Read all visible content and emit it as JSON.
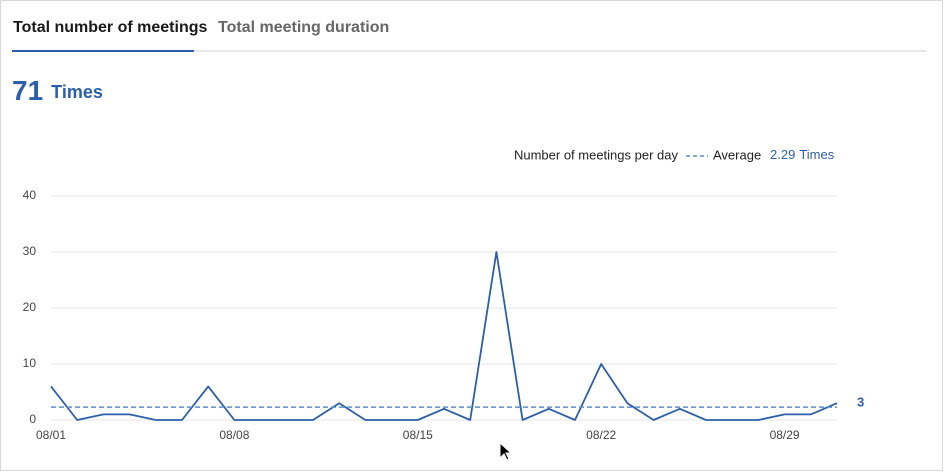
{
  "tabs": [
    "Total number of meetings",
    "Total meeting duration"
  ],
  "summary": {
    "value": 71,
    "unit": "Times"
  },
  "chart_data": {
    "type": "line",
    "series_name": "Number of meetings per day",
    "color": "#2c5faa",
    "categories": [
      "08/01",
      null,
      null,
      null,
      null,
      null,
      null,
      "08/08",
      null,
      null,
      null,
      null,
      null,
      null,
      "08/15",
      null,
      null,
      null,
      null,
      null,
      null,
      "08/22",
      null,
      null,
      null,
      null,
      null,
      null,
      "08/29",
      null,
      null
    ],
    "values": [
      6,
      0,
      1,
      1,
      0,
      0,
      6,
      0,
      0,
      0,
      0,
      3,
      0,
      0,
      0,
      2,
      0,
      30,
      0,
      2,
      0,
      10,
      3,
      0,
      2,
      0,
      0,
      0,
      1,
      1,
      3
    ],
    "average": 2.29,
    "average_label": "Average",
    "average_unit": "Times",
    "average_color": "#5b8fd0",
    "ylim": [
      0,
      40
    ],
    "yticks": [
      0,
      10,
      20,
      30,
      40
    ],
    "grid": true
  }
}
